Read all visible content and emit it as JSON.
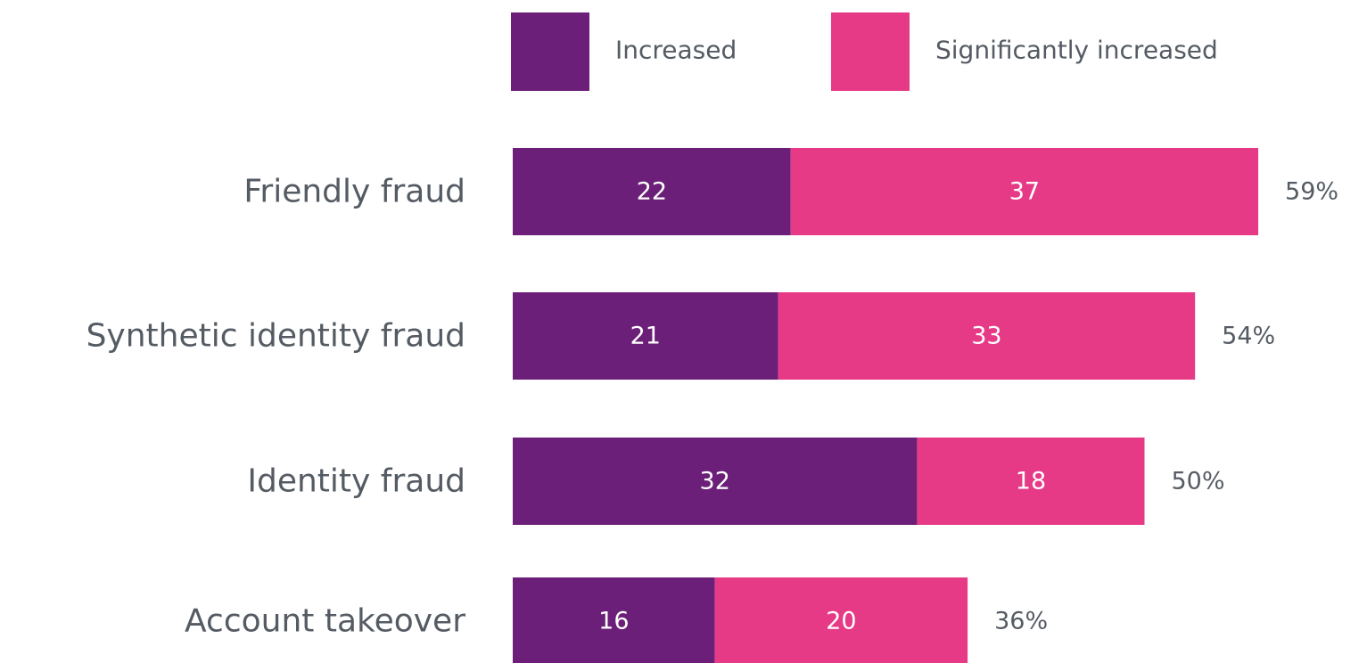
{
  "chart_data": {
    "type": "stacked-bar-horizontal",
    "categories": [
      "Friendly fraud",
      "Synthetic identity fraud",
      "Identity fraud",
      "Account takeover"
    ],
    "series": [
      {
        "name": "Increased",
        "color": "#6b1f78",
        "values": [
          22,
          21,
          32,
          16
        ]
      },
      {
        "name": "Significantly increased",
        "color": "#e63a87",
        "values": [
          37,
          33,
          18,
          20
        ]
      }
    ],
    "totals": [
      59,
      54,
      50,
      36
    ],
    "total_labels": [
      "59%",
      "54%",
      "50%",
      "36%"
    ]
  }
}
